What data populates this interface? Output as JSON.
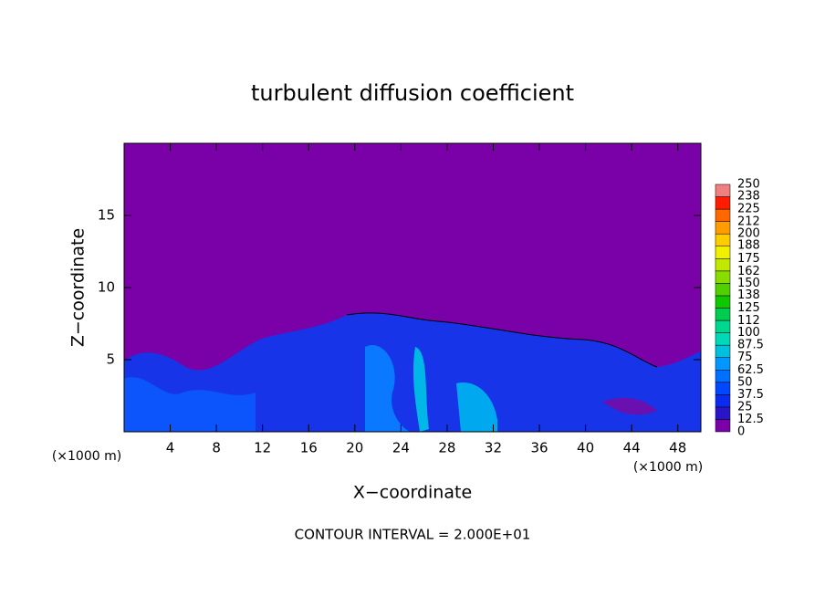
{
  "chart_data": {
    "type": "contour",
    "title": "turbulent diffusion coefficient",
    "x_label": "X−coordinate",
    "y_label": "Z−coordinate",
    "x_unit_label": "(×1000 m)",
    "y_unit_label": "(×1000 m)",
    "footer": "CONTOUR INTERVAL = 2.000E+01",
    "xlim": [
      0,
      50
    ],
    "xticks": [
      4,
      8,
      12,
      16,
      20,
      24,
      28,
      32,
      36,
      40,
      44,
      48
    ],
    "ylim": [
      0,
      20
    ],
    "yticks": [
      5,
      10,
      15
    ],
    "colorbar": {
      "levels": [
        0,
        12.5,
        25,
        37.5,
        50,
        62.5,
        75,
        87.5,
        100,
        112,
        125,
        138,
        150,
        162,
        175,
        188,
        200,
        212,
        225,
        238,
        250
      ],
      "colors": [
        "#7a00a8",
        "#2a14c8",
        "#0a2cf0",
        "#0048ff",
        "#0070ff",
        "#0098ff",
        "#00c0e0",
        "#00d8b8",
        "#00d890",
        "#00cc50",
        "#10c800",
        "#50d000",
        "#88dc00",
        "#c0e800",
        "#f0f000",
        "#ffcc00",
        "#ff9c00",
        "#ff6800",
        "#ff1c00",
        "#f08080"
      ]
    }
  }
}
